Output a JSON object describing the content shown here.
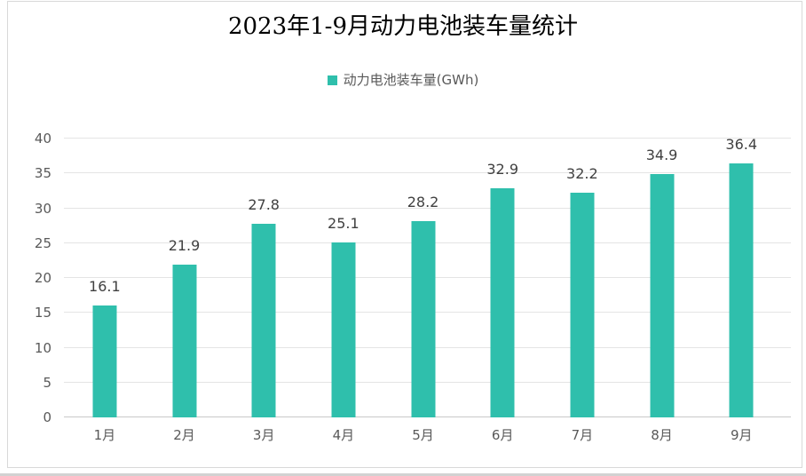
{
  "chart_data": {
    "type": "bar",
    "title": "2023年1-9月动力电池装车量统计",
    "legend_entries": [
      "动力电池装车量(GWh)"
    ],
    "legend_position": "top",
    "categories": [
      "1月",
      "2月",
      "3月",
      "4月",
      "5月",
      "6月",
      "7月",
      "8月",
      "9月"
    ],
    "values": [
      16.1,
      21.9,
      27.8,
      25.1,
      28.2,
      32.9,
      32.2,
      34.9,
      36.4
    ],
    "data_labels_shown": true,
    "xlabel": "",
    "ylabel": "",
    "ylim": [
      0,
      40
    ],
    "yticks": [
      0,
      5,
      10,
      15,
      20,
      25,
      30,
      35,
      40
    ],
    "grid": true,
    "colors": {
      "bar": "#2FBFAC",
      "gridline": "#E4E4E4",
      "axis_line": "#C9C9C9",
      "axis_text": "#595959",
      "value_label_text": "#404040",
      "title_text": "#000000",
      "frame_border": "#D9D9D9"
    }
  }
}
